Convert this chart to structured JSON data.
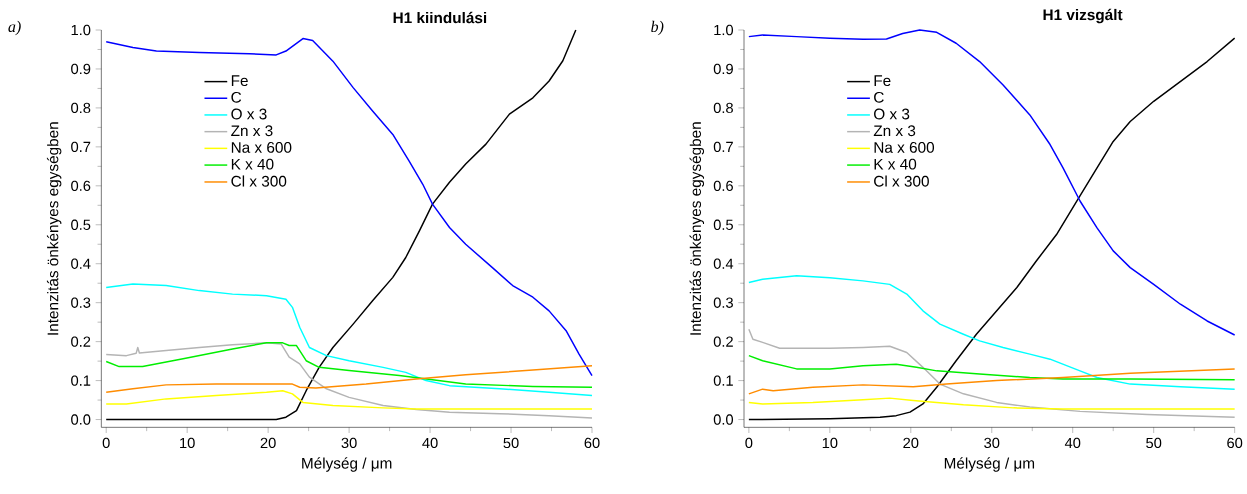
{
  "chart_data": [
    {
      "type": "line",
      "title": "H1 kiindulási",
      "xlabel": "Mélység / μm",
      "ylabel": "Intenzitás önkényes egységben",
      "annotations": [
        "a)"
      ],
      "legend": "top left",
      "xlim": [
        -0.6,
        60
      ],
      "ylim": [
        -0.02,
        1.0
      ],
      "xticks": [
        0,
        10,
        20,
        30,
        40,
        50,
        60
      ],
      "yticks": [
        {
          "value": 0,
          "label": "0.0"
        },
        {
          "value": 0.1,
          "label": "0.1"
        },
        {
          "value": 0.2,
          "label": "0.2"
        },
        {
          "value": 0.3,
          "label": "0.3"
        },
        {
          "value": 0.4,
          "label": "0.4"
        },
        {
          "value": 0.5,
          "label": "0.5"
        },
        {
          "value": 0.6,
          "label": "0.6"
        },
        {
          "value": 0.7,
          "label": "0.7"
        },
        {
          "value": 0.8,
          "label": "0.8"
        },
        {
          "value": 0.9,
          "label": "0.9"
        },
        {
          "value": 1,
          "label": "1.0"
        }
      ],
      "series": [
        {
          "name": "Fe",
          "color": "#000000",
          "x": [
            0,
            10,
            21,
            22.2,
            23.5,
            24.7,
            26.3,
            28,
            30.5,
            32.9,
            35.4,
            37,
            38.7,
            40.3,
            42.4,
            44.4,
            46.9,
            49.8,
            52.7,
            54.7,
            56.4,
            58
          ],
          "values": [
            0,
            0,
            0,
            0.006,
            0.023,
            0.074,
            0.134,
            0.185,
            0.245,
            0.305,
            0.365,
            0.416,
            0.485,
            0.553,
            0.609,
            0.656,
            0.707,
            0.784,
            0.826,
            0.869,
            0.921,
            1.0
          ]
        },
        {
          "name": "C",
          "color": "#0000ff",
          "x": [
            0,
            3.3,
            6.2,
            11.5,
            17.7,
            21,
            22.2,
            24.3,
            25.5,
            28,
            30.5,
            32.9,
            35.4,
            37.4,
            39.1,
            40.3,
            42.4,
            44.4,
            47.7,
            50.2,
            52.7,
            54.7,
            56.8,
            58.4,
            60
          ],
          "values": [
            0.97,
            0.955,
            0.946,
            0.942,
            0.939,
            0.936,
            0.946,
            0.978,
            0.973,
            0.92,
            0.852,
            0.792,
            0.732,
            0.664,
            0.604,
            0.553,
            0.493,
            0.45,
            0.39,
            0.344,
            0.314,
            0.279,
            0.228,
            0.168,
            0.113
          ]
        },
        {
          "name": "O x 3",
          "color": "#00ffff",
          "x": [
            0,
            3.3,
            7.4,
            11.5,
            15.6,
            19.8,
            22.2,
            23,
            23.9,
            25.1,
            27.2,
            30,
            34.2,
            37,
            39.5,
            42.4,
            48.6,
            54.7,
            60
          ],
          "values": [
            0.339,
            0.348,
            0.344,
            0.331,
            0.322,
            0.318,
            0.309,
            0.288,
            0.237,
            0.185,
            0.164,
            0.151,
            0.134,
            0.121,
            0.1,
            0.087,
            0.079,
            0.07,
            0.062
          ]
        },
        {
          "name": "Zn x 3",
          "color": "#b4b4b4",
          "x": [
            0,
            2.5,
            3.7,
            3.9,
            4.1,
            7.4,
            11.5,
            15.6,
            19.8,
            21.6,
            22.6,
            23.9,
            25.1,
            27.2,
            30,
            34.2,
            38.3,
            42.4,
            48.6,
            54.7,
            60
          ],
          "values": [
            0.167,
            0.164,
            0.17,
            0.185,
            0.171,
            0.177,
            0.185,
            0.192,
            0.197,
            0.194,
            0.16,
            0.143,
            0.109,
            0.079,
            0.057,
            0.036,
            0.026,
            0.019,
            0.015,
            0.01,
            0.004
          ]
        },
        {
          "name": "Na x 600",
          "color": "#ffff00",
          "x": [
            0,
            2.5,
            7.4,
            13.6,
            19.8,
            21.8,
            23,
            24.3,
            28,
            34.2,
            38.3,
            60
          ],
          "values": [
            0.04,
            0.04,
            0.053,
            0.062,
            0.07,
            0.074,
            0.066,
            0.044,
            0.036,
            0.03,
            0.027,
            0.027
          ]
        },
        {
          "name": "K x 40",
          "color": "#00ee00",
          "x": [
            0,
            1.6,
            4.5,
            9.5,
            15.6,
            19.8,
            21.8,
            22.6,
            23.5,
            24.7,
            26.3,
            30,
            36.2,
            40.3,
            44.4,
            52.7,
            60
          ],
          "values": [
            0.149,
            0.136,
            0.136,
            0.156,
            0.181,
            0.197,
            0.197,
            0.19,
            0.19,
            0.151,
            0.134,
            0.126,
            0.113,
            0.102,
            0.091,
            0.085,
            0.083
          ]
        },
        {
          "name": "Cl x 300",
          "color": "#ff8c00",
          "x": [
            0,
            3.3,
            7.4,
            13.6,
            21.8,
            23,
            23.9,
            25.9,
            32.1,
            38.3,
            44.4,
            52.7,
            60
          ],
          "values": [
            0.07,
            0.079,
            0.089,
            0.091,
            0.091,
            0.091,
            0.083,
            0.081,
            0.091,
            0.104,
            0.115,
            0.127,
            0.138
          ]
        }
      ]
    },
    {
      "type": "line",
      "title": "H1 vizsgált",
      "xlabel": "Mélység / μm",
      "ylabel": "Intenzitás önkényes egységben",
      "annotations": [
        "b)"
      ],
      "legend": "top left",
      "xlim": [
        -0.6,
        60
      ],
      "ylim": [
        -0.02,
        1.0
      ],
      "xticks": [
        0,
        10,
        20,
        30,
        40,
        50,
        60
      ],
      "yticks": [
        {
          "value": 0,
          "label": "0.0"
        },
        {
          "value": 0.1,
          "label": "0.1"
        },
        {
          "value": 0.2,
          "label": "0.2"
        },
        {
          "value": 0.3,
          "label": "0.3"
        },
        {
          "value": 0.4,
          "label": "0.4"
        },
        {
          "value": 0.5,
          "label": "0.5"
        },
        {
          "value": 0.6,
          "label": "0.6"
        },
        {
          "value": 0.7,
          "label": "0.7"
        },
        {
          "value": 0.8,
          "label": "0.8"
        },
        {
          "value": 0.9,
          "label": "0.9"
        },
        {
          "value": 1,
          "label": "1.0"
        }
      ],
      "series": [
        {
          "name": "Fe",
          "color": "#000000",
          "x": [
            0,
            10,
            16.2,
            18.2,
            19.9,
            21.5,
            23.2,
            25.6,
            28.1,
            30.6,
            33.1,
            35.5,
            38,
            40.5,
            43,
            45,
            47.1,
            50,
            53.3,
            56.6,
            60
          ],
          "values": [
            0,
            0.002,
            0.006,
            0.01,
            0.019,
            0.04,
            0.083,
            0.151,
            0.219,
            0.279,
            0.339,
            0.407,
            0.475,
            0.561,
            0.646,
            0.714,
            0.765,
            0.817,
            0.868,
            0.919,
            0.979
          ]
        },
        {
          "name": "C",
          "color": "#0000ff",
          "x": [
            0,
            1.7,
            5.9,
            10,
            14.1,
            17,
            19,
            21.1,
            23.2,
            25.6,
            28.5,
            31.4,
            34.7,
            37.2,
            38.8,
            40.9,
            43,
            45,
            47.1,
            50,
            53.3,
            56.6,
            60
          ],
          "values": [
            0.983,
            0.987,
            0.983,
            0.979,
            0.976,
            0.977,
            0.991,
            1.0,
            0.994,
            0.966,
            0.919,
            0.859,
            0.782,
            0.706,
            0.646,
            0.561,
            0.492,
            0.433,
            0.39,
            0.347,
            0.296,
            0.253,
            0.217
          ]
        },
        {
          "name": "O x 3",
          "color": "#00ffff",
          "x": [
            0,
            1.7,
            5.9,
            10,
            14.1,
            17.4,
            19.5,
            21.5,
            23.6,
            26.5,
            28.5,
            31.4,
            34.7,
            37.2,
            40.9,
            43,
            47.1,
            53.3,
            60
          ],
          "values": [
            0.352,
            0.36,
            0.369,
            0.364,
            0.356,
            0.347,
            0.322,
            0.279,
            0.245,
            0.219,
            0.202,
            0.185,
            0.168,
            0.155,
            0.125,
            0.108,
            0.091,
            0.084,
            0.078
          ]
        },
        {
          "name": "Zn x 3",
          "color": "#b4b4b4",
          "x": [
            0,
            0.5,
            1.7,
            3.8,
            10,
            14.1,
            17.4,
            19.5,
            21.5,
            23.6,
            26.5,
            30.6,
            34.7,
            40.9,
            49.2,
            60
          ],
          "values": [
            0.232,
            0.206,
            0.198,
            0.183,
            0.183,
            0.185,
            0.188,
            0.172,
            0.134,
            0.091,
            0.066,
            0.044,
            0.032,
            0.021,
            0.013,
            0.006
          ]
        },
        {
          "name": "Na x 600",
          "color": "#ffff00",
          "x": [
            0,
            1.7,
            7.9,
            14.1,
            17.4,
            20.3,
            23.2,
            26.5,
            32.7,
            38.8,
            60
          ],
          "values": [
            0.044,
            0.04,
            0.044,
            0.051,
            0.055,
            0.049,
            0.044,
            0.038,
            0.03,
            0.027,
            0.027
          ]
        },
        {
          "name": "K x 40",
          "color": "#00ee00",
          "x": [
            0,
            1.7,
            5.9,
            10,
            14.1,
            18.2,
            20.7,
            23.2,
            28.5,
            34.7,
            38.8,
            47.1,
            60
          ],
          "values": [
            0.164,
            0.151,
            0.13,
            0.13,
            0.138,
            0.142,
            0.134,
            0.125,
            0.117,
            0.108,
            0.104,
            0.104,
            0.102
          ]
        },
        {
          "name": "Cl x 300",
          "color": "#ff8c00",
          "x": [
            0,
            1.7,
            3,
            7.9,
            14.1,
            20.3,
            24.4,
            30.6,
            38.8,
            47.1,
            60
          ],
          "values": [
            0.066,
            0.078,
            0.074,
            0.083,
            0.089,
            0.084,
            0.091,
            0.1,
            0.108,
            0.119,
            0.13
          ]
        }
      ]
    }
  ]
}
